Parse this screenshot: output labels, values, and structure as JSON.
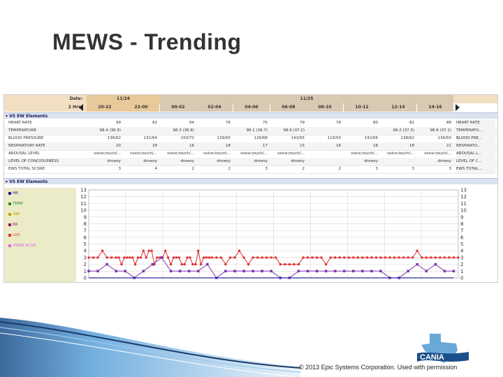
{
  "slide_title": "MEWS - Trending",
  "header": {
    "date_label": "Date:",
    "hrs_label": "2 Hrs:",
    "date_groups": [
      "11/24",
      "11/25"
    ],
    "hrs": [
      "20-22",
      "22-00",
      "00-02",
      "02-04",
      "04-06",
      "06-08",
      "08-10",
      "10-12",
      "12-14",
      "14-16"
    ]
  },
  "section_table": "VS EW Elements",
  "section_graph": "VS EW Elements",
  "rows": [
    {
      "label": "HEART RATE",
      "right_label": "HEART RATE",
      "cells": [
        "99",
        "82",
        "84",
        "76",
        "75",
        "79",
        "78",
        "80",
        "82",
        "88"
      ]
    },
    {
      "label": "TEMPERATURE",
      "right_label": "TEMPERATU...",
      "cells": [
        "98.4 (36.9)",
        "",
        "98.3 (36.8)",
        "",
        "98.1 (36.7)",
        "98.9 (37.2)",
        "",
        "",
        "99.2 (37.3)",
        "98.8 (37.1)"
      ]
    },
    {
      "label": "BLOOD PRESSURE",
      "right_label": "BLOOD PRE...",
      "cells": [
        "136/62",
        "131/64",
        "150/72",
        "139/65",
        "126/68",
        "143/65",
        "119/50",
        "142/66",
        "138/62",
        "136/60"
      ]
    },
    {
      "label": "RESPIRATORY RATE",
      "right_label": "RESPIRATO...",
      "cells": [
        "20",
        "29",
        "16",
        "18",
        "17",
        "15",
        "16",
        "18",
        "18",
        "21"
      ]
    },
    {
      "label": "AROUSAL LEVEL",
      "right_label": "AROUSAL L...",
      "cells": [
        "voice;touch/...",
        "voice;touch/...",
        "voice;touch/...",
        "voice;touch/...",
        "voice;touch/...",
        "voice;touch/...",
        "",
        "voice;touch/...",
        "voice;touch/...",
        "voice;touch/..."
      ]
    },
    {
      "label": "LEVEL OF CONCIOUSNESS",
      "right_label": "LEVEL OF C...",
      "cells": [
        "drowsy",
        "drowsy",
        "drowsy",
        "drowsy",
        "drowsy",
        "drowsy",
        "",
        "drowsy",
        "",
        "drowsy"
      ]
    },
    {
      "label": "EWS TOTAL SCORE",
      "right_label": "EWS TOTAL...",
      "cells": [
        "3",
        "4",
        "2",
        "2",
        "3",
        "2",
        "2",
        "3",
        "3",
        "3"
      ]
    }
  ],
  "legend": [
    {
      "label": "HR",
      "color": "#1a1a8a"
    },
    {
      "label": "TEMP",
      "color": "#2c8a2c"
    },
    {
      "label": "SBP",
      "color": "#c8a000"
    },
    {
      "label": "RR",
      "color": "#8a1a6a"
    },
    {
      "label": "LOC",
      "color": "#e03030"
    },
    {
      "label": "VSEW SCOR",
      "color": "#e060e0"
    }
  ],
  "chart_data": {
    "type": "line",
    "ylim": [
      0,
      13
    ],
    "y_ticks": [
      "0",
      "1",
      "2",
      "3",
      "4",
      "5",
      "6",
      "7",
      "8",
      "9",
      "10",
      "11",
      "12",
      "13"
    ],
    "grid": true,
    "series": [
      {
        "name": "LOC",
        "color": "#e03030",
        "x": [
          0,
          0.5,
          1,
          1.5,
          2,
          2.5,
          3,
          3.3,
          3.6,
          3.9,
          4.2,
          4.5,
          4.8,
          5.1,
          5.4,
          5.7,
          6,
          6.3,
          6.6,
          6.9,
          7.2,
          7.5,
          7.8,
          8.1,
          8.4,
          8.7,
          9,
          9.3,
          9.6,
          9.9,
          10.2,
          10.5,
          10.8,
          11.1,
          11.4,
          11.7,
          12,
          12.3,
          12.6,
          12.9,
          13.2,
          13.5,
          14,
          14.5,
          15,
          15.5,
          16,
          16.5,
          17,
          17.5,
          18,
          18.5,
          19,
          19.5,
          20,
          20.5,
          21,
          21.5,
          22,
          22.5,
          23,
          23.5,
          24,
          24.5,
          25,
          25.5,
          26,
          26.5,
          27,
          27.5,
          28,
          28.5,
          29,
          29.5,
          30,
          30.5,
          31,
          31.5,
          32,
          32.5,
          33,
          33.5,
          34,
          34.5,
          35,
          35.5,
          36,
          36.5,
          37,
          37.5,
          38,
          38.5,
          39,
          39.5,
          40,
          40.5
        ],
        "y": [
          3,
          3,
          3,
          4,
          3,
          3,
          3,
          3,
          2,
          3,
          3,
          3,
          3,
          2,
          3,
          3,
          4,
          3,
          4,
          4,
          2,
          3,
          3,
          3,
          4,
          3,
          2,
          3,
          3,
          3,
          2,
          2,
          3,
          3,
          2,
          2,
          4,
          2,
          3,
          3,
          3,
          3,
          3,
          3,
          2,
          3,
          3,
          4,
          3,
          2,
          3,
          3,
          3,
          3,
          3,
          3,
          2,
          2,
          2,
          2,
          2,
          3,
          3,
          3,
          3,
          3,
          2,
          3,
          3,
          3,
          3,
          3,
          3,
          3,
          3,
          3,
          3,
          3,
          3,
          3,
          3,
          3,
          3,
          3,
          3,
          3,
          4,
          3,
          3,
          3,
          3,
          3,
          3,
          3,
          3,
          3
        ]
      },
      {
        "name": "VSEW SCOR",
        "color": "#7a3ab0",
        "x": [
          0,
          1,
          2,
          3,
          4,
          5,
          6,
          7,
          8,
          9,
          10,
          11,
          12,
          13,
          14,
          15,
          16,
          17,
          18,
          19,
          20,
          21,
          22,
          23,
          24,
          25,
          26,
          27,
          28,
          29,
          30,
          31,
          32,
          33,
          34,
          35,
          36,
          37,
          38,
          39,
          40
        ],
        "y": [
          1,
          1,
          2,
          1,
          1,
          0,
          1,
          2,
          3,
          1,
          1,
          1,
          1,
          2,
          0,
          1,
          1,
          1,
          1,
          1,
          1,
          0,
          0,
          1,
          1,
          1,
          1,
          1,
          1,
          1,
          1,
          1,
          1,
          0,
          0,
          1,
          2,
          1,
          2,
          1,
          1
        ]
      },
      {
        "name": "HR",
        "color": "#2a2a9a",
        "x": [
          0,
          40
        ],
        "y": [
          0,
          0
        ]
      }
    ]
  },
  "footer": {
    "copyright": "© 2013 Epic Systems Corporation. Used with permission",
    "logo_text": "CANIA"
  }
}
